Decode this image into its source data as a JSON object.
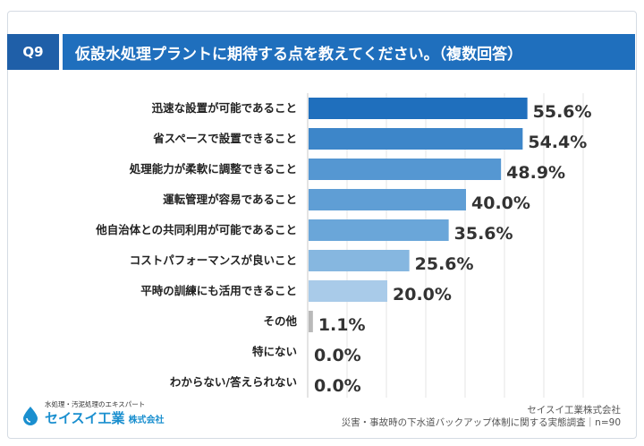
{
  "question": {
    "number": "Q9",
    "title": "仮設水処理プラントに期待する点を教えてください。（複数回答）"
  },
  "chart_data": {
    "type": "bar",
    "orientation": "horizontal",
    "categories": [
      "迅速な設置が可能であること",
      "省スペースで設置できること",
      "処理能力が柔軟に調整できること",
      "運転管理が容易であること",
      "他自治体との共同利用が可能であること",
      "コストパフォーマンスが良いこと",
      "平時の訓練にも活用できること",
      "その他",
      "特にない",
      "わからない/答えられない"
    ],
    "values": [
      55.6,
      54.4,
      48.9,
      40.0,
      35.6,
      25.6,
      20.0,
      1.1,
      0.0,
      0.0
    ],
    "value_labels": [
      "55.6%",
      "54.4%",
      "48.9%",
      "40.0%",
      "35.6%",
      "25.6%",
      "20.0%",
      "1.1%",
      "0.0%",
      "0.0%"
    ],
    "bar_colors": [
      "#1f6fbd",
      "#3d86c9",
      "#5597d2",
      "#5f9ed5",
      "#6aa6d9",
      "#86b7e0",
      "#a9cbe9",
      "#b9b9b9",
      "#b9b9b9",
      "#b9b9b9"
    ],
    "xlim": [
      0,
      70
    ],
    "grid": true
  },
  "footer": {
    "logo_tagline": "水処理・汚泥処理のエキスパート",
    "logo_name": "セイスイ工業",
    "logo_suffix": "株式会社",
    "company": "セイスイ工業株式会社",
    "survey": "災害・事故時の下水道バックアップ体制に関する実態調査｜n=90"
  }
}
